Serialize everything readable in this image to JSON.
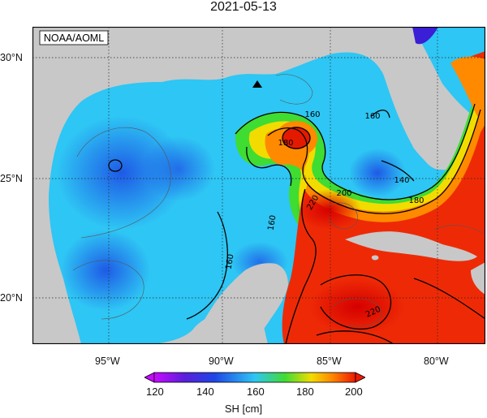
{
  "title": "2021-05-13",
  "credit": "NOAA/AOML",
  "colorbar": {
    "label": "SH [cm]",
    "ticks": [
      "120",
      "140",
      "160",
      "180",
      "200"
    ]
  },
  "axes": {
    "lon_labels": [
      "95°W",
      "90°W",
      "85°W",
      "80°W"
    ],
    "lat_labels": [
      "30°N",
      "25°N",
      "20°N"
    ]
  },
  "contours": {
    "labels": [
      "160",
      "180",
      "160",
      "140",
      "160",
      "180",
      "200",
      "220",
      "160",
      "220"
    ]
  },
  "colors": {
    "land": "#c8c8c8",
    "low": "#1e4fd6",
    "mid": "#38c8ff",
    "warm": "#ffdd00",
    "high": "#ee1a00"
  }
}
